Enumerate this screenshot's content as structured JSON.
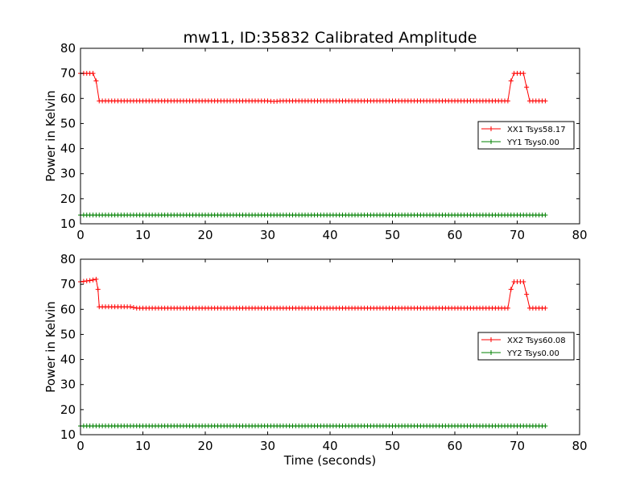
{
  "figure": {
    "title": "mw11, ID:35832 Calibrated Amplitude"
  },
  "chart_data": [
    {
      "type": "line",
      "title": "mw11, ID:35832 Calibrated Amplitude",
      "xlabel": "",
      "ylabel": "Power in Kelvin",
      "xlim": [
        0,
        80
      ],
      "ylim": [
        10,
        80
      ],
      "xticks": [
        "0",
        "10",
        "20",
        "30",
        "40",
        "50",
        "60",
        "70",
        "80"
      ],
      "yticks": [
        "10",
        "20",
        "30",
        "40",
        "50",
        "60",
        "70",
        "80"
      ],
      "grid": false,
      "legend_position": "center-right",
      "marker": "+",
      "series": [
        {
          "name": "XX1 Tsys58.17",
          "color": "#ff0000",
          "points": [
            [
              0,
              70
            ],
            [
              2,
              70
            ],
            [
              2.5,
              67
            ],
            [
              3,
              59
            ],
            [
              30,
              59
            ],
            [
              31,
              58.8
            ],
            [
              32,
              59
            ],
            [
              68.5,
              59
            ],
            [
              69,
              67
            ],
            [
              69.5,
              70
            ],
            [
              71,
              70
            ],
            [
              71.5,
              64.5
            ],
            [
              72,
              59
            ],
            [
              74.5,
              59
            ]
          ]
        },
        {
          "name": "YY1 Tsys0.00",
          "color": "#008000",
          "points": [
            [
              0,
              13.5
            ],
            [
              74.5,
              13.5
            ]
          ]
        }
      ]
    },
    {
      "type": "line",
      "title": "",
      "xlabel": "Time (seconds)",
      "ylabel": "Power in Kelvin",
      "xlim": [
        0,
        80
      ],
      "ylim": [
        10,
        80
      ],
      "xticks": [
        "0",
        "10",
        "20",
        "30",
        "40",
        "50",
        "60",
        "70",
        "80"
      ],
      "yticks": [
        "10",
        "20",
        "30",
        "40",
        "50",
        "60",
        "70",
        "80"
      ],
      "grid": false,
      "legend_position": "center-right",
      "marker": "+",
      "series": [
        {
          "name": "XX2 Tsys60.08",
          "color": "#ff0000",
          "points": [
            [
              0,
              71
            ],
            [
              1.5,
              71.5
            ],
            [
              2.5,
              72
            ],
            [
              2.8,
              68
            ],
            [
              3,
              61
            ],
            [
              8,
              61
            ],
            [
              9,
              60.5
            ],
            [
              68.5,
              60.5
            ],
            [
              69,
              68
            ],
            [
              69.5,
              71
            ],
            [
              71,
              71
            ],
            [
              71.5,
              66
            ],
            [
              72,
              60.5
            ],
            [
              74.5,
              60.5
            ]
          ]
        },
        {
          "name": "YY2 Tsys0.00",
          "color": "#008000",
          "points": [
            [
              0,
              13.5
            ],
            [
              74.5,
              13.5
            ]
          ]
        }
      ]
    }
  ]
}
